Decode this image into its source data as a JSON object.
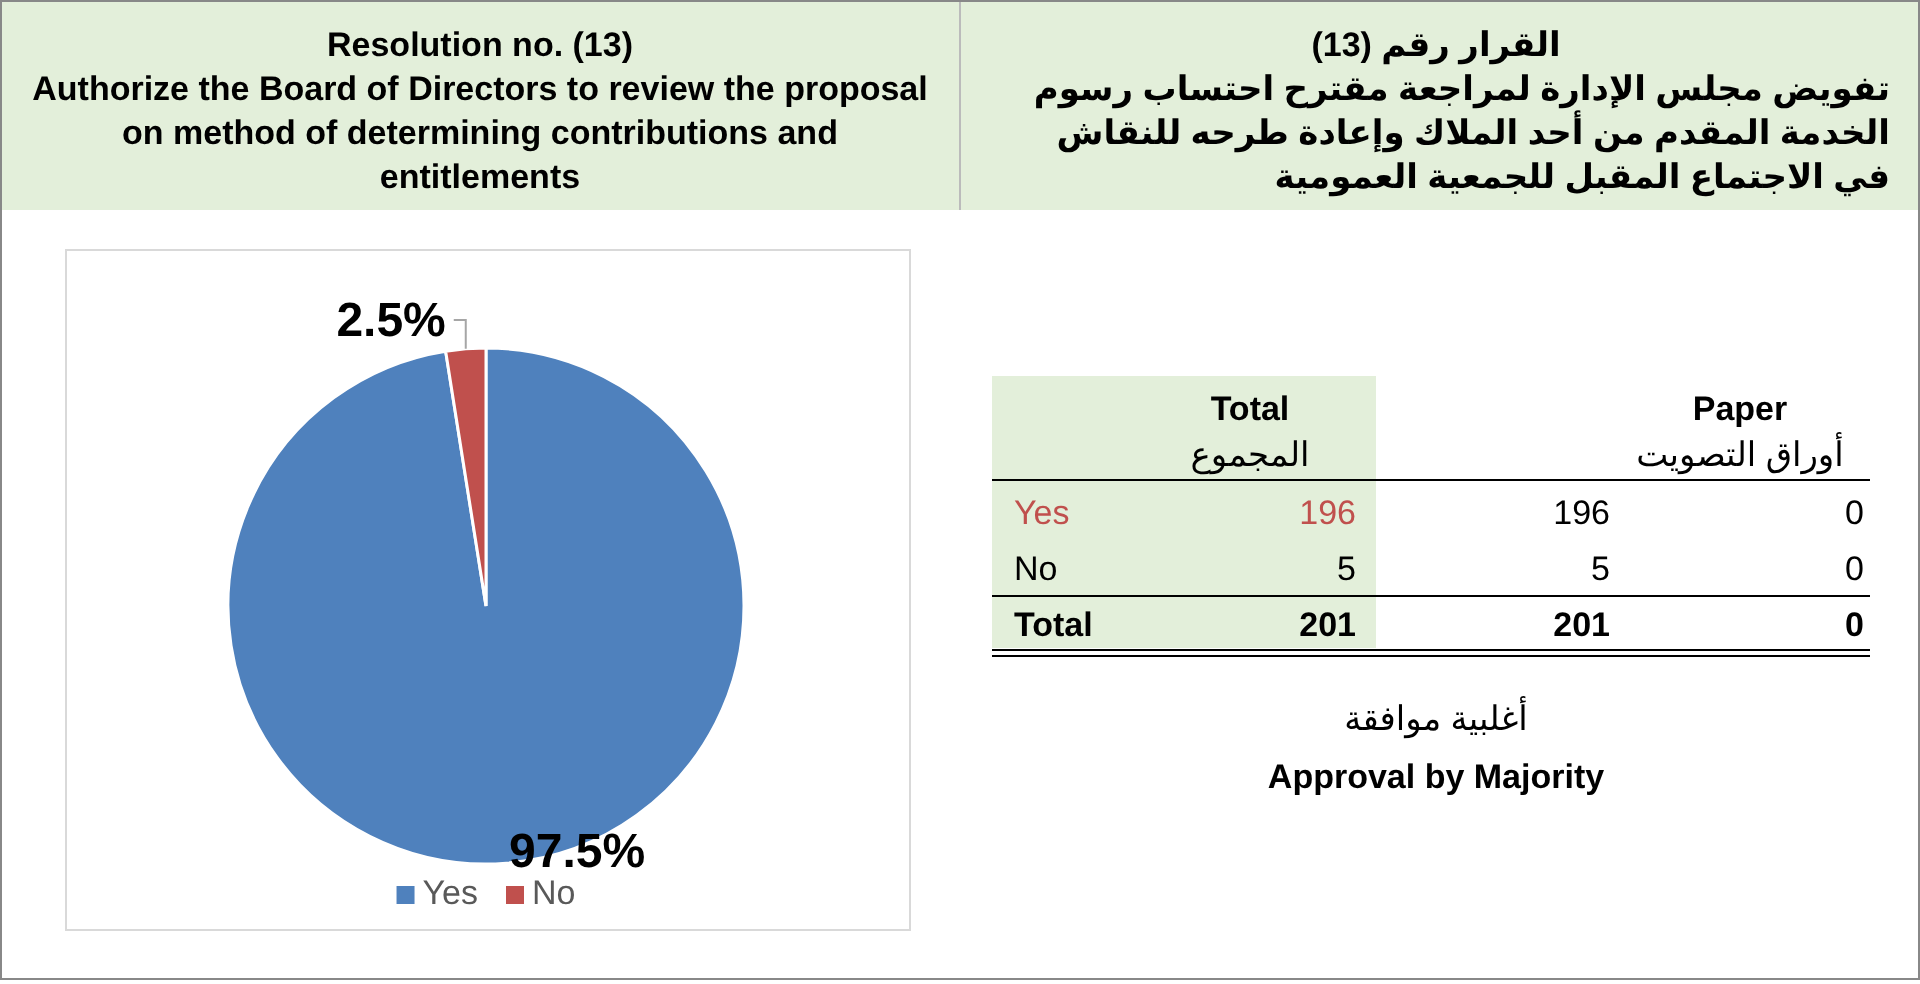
{
  "chart_data": [
    {
      "type": "pie",
      "title": "Resolution no. (13)",
      "subtitle": "Authorize the Board of Directors to review the proposal on method of determining contributions and entitlements",
      "categories": [
        "Yes",
        "No"
      ],
      "values": [
        97.5,
        2.5
      ],
      "colors": [
        "#4f81bd",
        "#c0504d"
      ],
      "value_labels": [
        "97.5%",
        "2.5%"
      ],
      "legend": "bottom"
    },
    {
      "type": "other",
      "title": "القرار رقم (13)",
      "subtitle": "تفويض مجلس الإدارة لمراجعة مقترح احتساب رسوم الخدمة المقدم من أحد الملاك وإعادة طرحه للنقاش في الاجتماع المقبل للجمعية العمومية",
      "annotations": [
        "Total",
        "المجموع",
        "Paper",
        "أوراق التصويت",
        "Yes",
        "196",
        "196",
        "0",
        "No",
        "5",
        "5",
        "0",
        "Total",
        "201",
        "201",
        "0",
        "أغلبية موافقة",
        "Approval by Majority"
      ]
    }
  ]
}
